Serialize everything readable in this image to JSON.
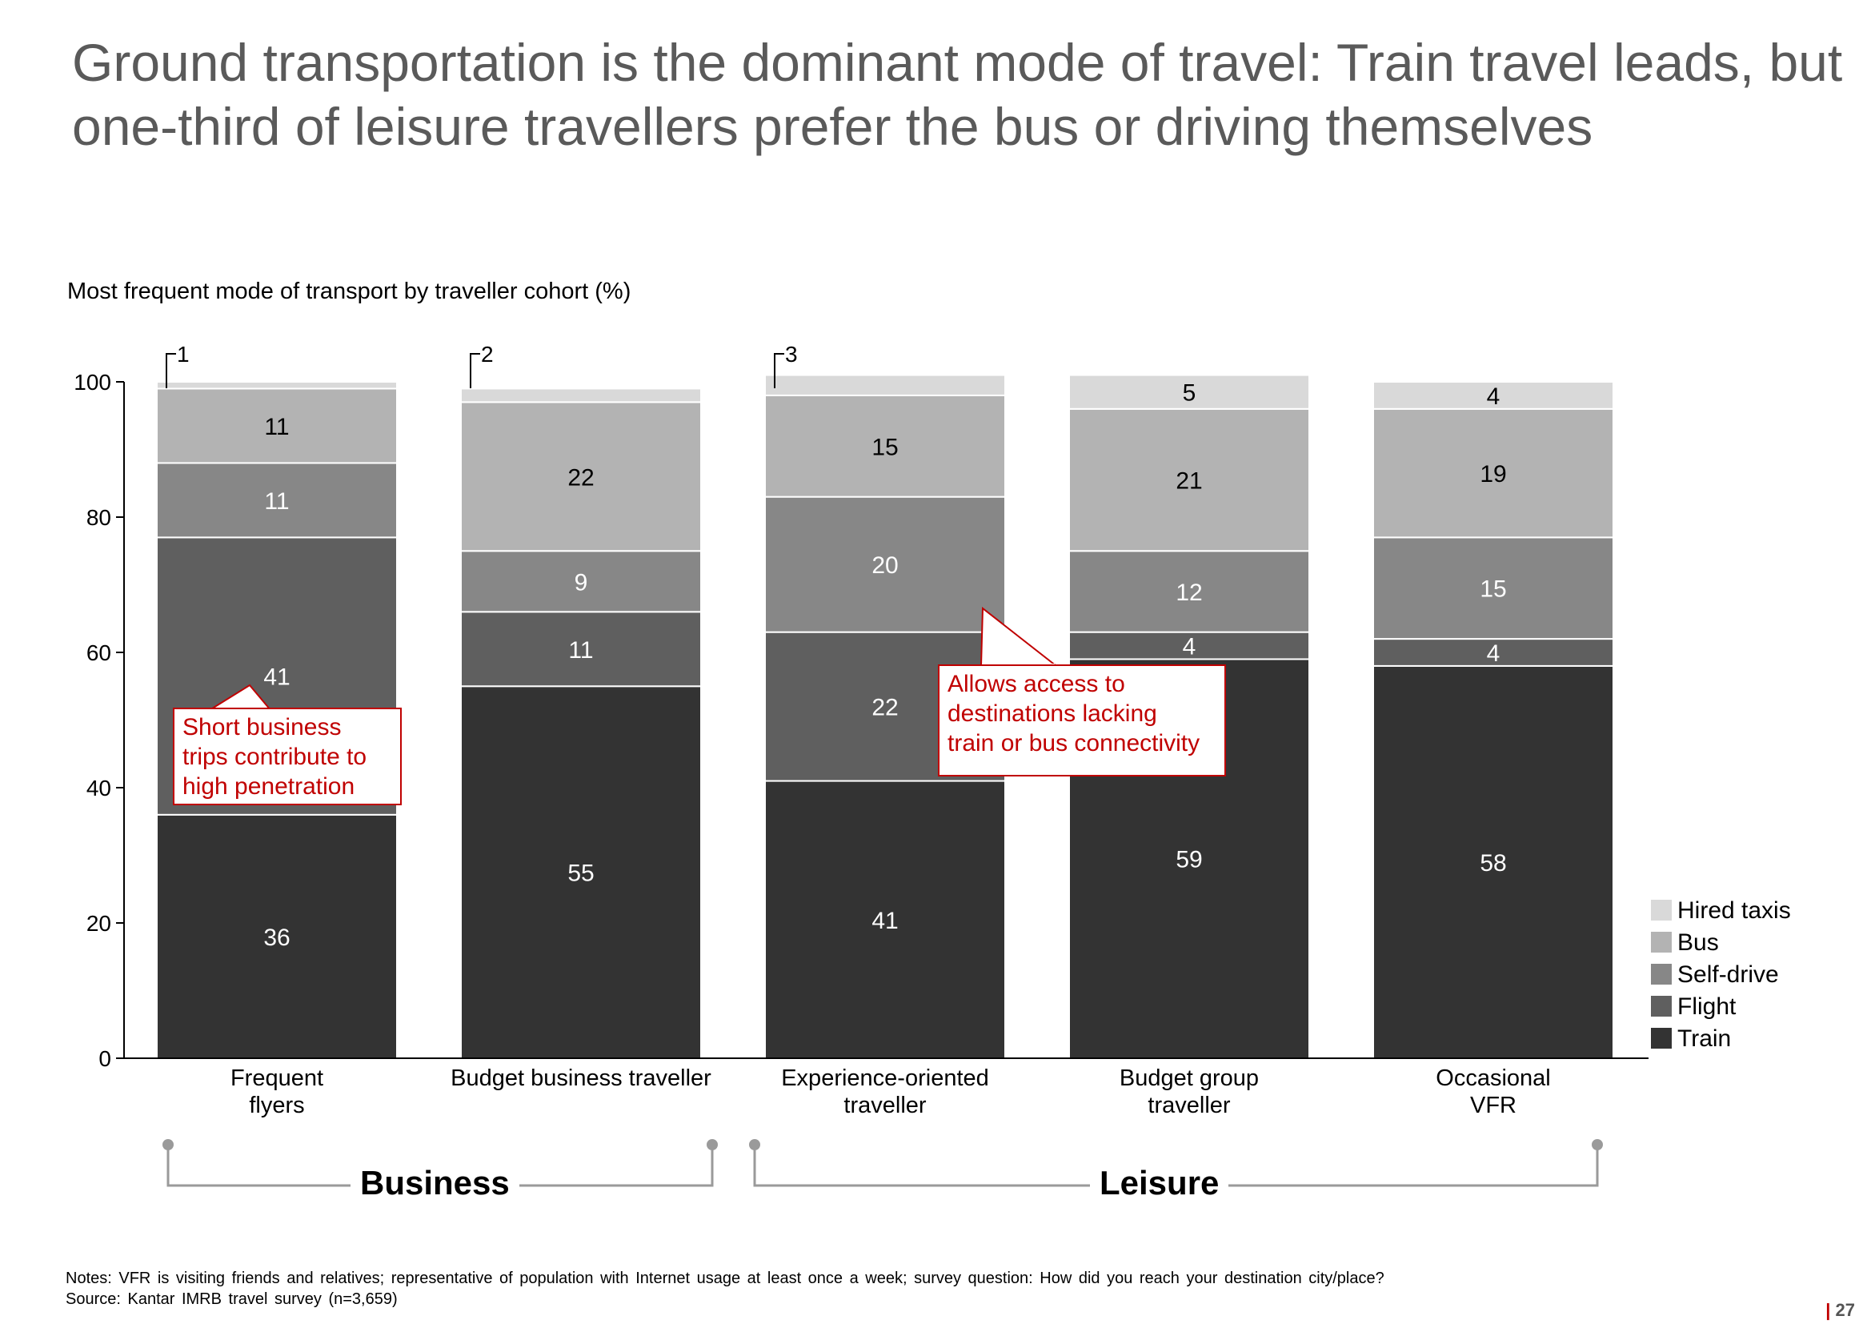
{
  "title": "Ground transportation is the dominant mode of travel: Train travel leads, but one-third of leisure travellers prefer the bus or driving themselves",
  "chart_data": {
    "type": "bar",
    "stacked": true,
    "title": "Most frequent mode of transport by traveller cohort (%)",
    "categories": [
      "Frequent\nflyers",
      "Budget business traveller",
      "Experience-oriented\ntraveller",
      "Budget group\ntraveller",
      "Occasional\nVFR"
    ],
    "ylim": [
      0,
      100
    ],
    "yticks": [
      0,
      20,
      40,
      60,
      80,
      100
    ],
    "legend_position": "right",
    "series": [
      {
        "name": "Train",
        "color": "#333333",
        "values": [
          36,
          55,
          41,
          59,
          58
        ],
        "labels": [
          "36",
          "55",
          "41",
          "59",
          "58"
        ],
        "label_color": "#ffffff"
      },
      {
        "name": "Flight",
        "color": "#5f5f5f",
        "values": [
          41,
          11,
          22,
          4,
          4
        ],
        "labels": [
          "41",
          "11",
          "22",
          "4",
          "4"
        ],
        "label_color": "#ffffff"
      },
      {
        "name": "Self-drive",
        "color": "#878787",
        "values": [
          11,
          9,
          20,
          12,
          15
        ],
        "labels": [
          "11",
          "9",
          "20",
          "12",
          "15"
        ],
        "label_color": "#ffffff"
      },
      {
        "name": "Bus",
        "color": "#b3b3b3",
        "values": [
          11,
          22,
          15,
          21,
          19
        ],
        "labels": [
          "11",
          "22",
          "15",
          "21",
          "19"
        ],
        "label_color": "#000000"
      },
      {
        "name": "Hired taxis",
        "color": "#d9d9d9",
        "values": [
          1,
          2,
          3,
          5,
          4
        ],
        "labels": [
          "",
          "",
          "",
          "5",
          "4"
        ],
        "label_color": "#000000"
      }
    ],
    "footnote_markers": [
      "1",
      "2",
      "3"
    ]
  },
  "annotations": {
    "short_business": "Short business\ntrips contribute to\nhigh penetration",
    "allows_access": "Allows access to\ndestinations lacking\ntrain or bus connectivity"
  },
  "groups": {
    "business": "Business",
    "leisure": "Leisure"
  },
  "notes": {
    "line1": "Notes: VFR  is visiting friends and relatives; representative of population with Internet usage at least once a week; survey question: How did you reach your destination city/place?",
    "line2": "Source: Kantar  IMRB travel survey (n=3,659)"
  },
  "page_number": "27",
  "page_bar": "|"
}
